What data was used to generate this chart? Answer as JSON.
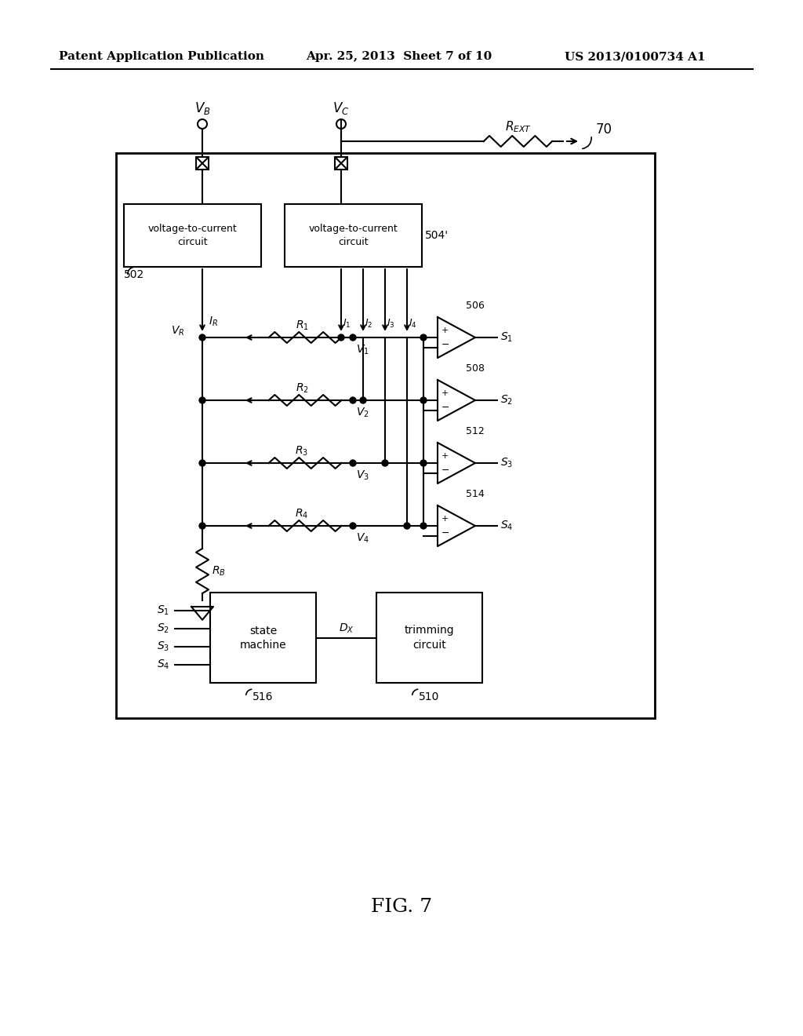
{
  "header_left": "Patent Application Publication",
  "header_mid": "Apr. 25, 2013  Sheet 7 of 10",
  "header_right": "US 2013/0100734 A1",
  "fig_label": "FIG. 7",
  "bg_color": "#ffffff",
  "line_color": "#000000"
}
